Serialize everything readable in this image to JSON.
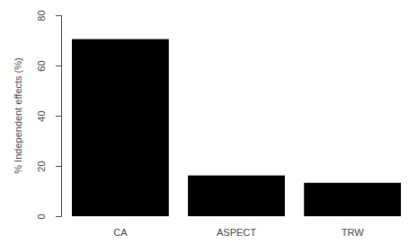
{
  "chart_data": {
    "type": "bar",
    "y_label": "% Independent effects (%)",
    "categories": [
      "CA",
      "ASPECT",
      "TRW"
    ],
    "values": [
      70.5,
      16.2,
      13.3
    ],
    "color": "#000000",
    "ylim": [
      0,
      80
    ],
    "yticks": [
      0,
      20,
      40,
      60,
      80
    ],
    "grid": false
  }
}
